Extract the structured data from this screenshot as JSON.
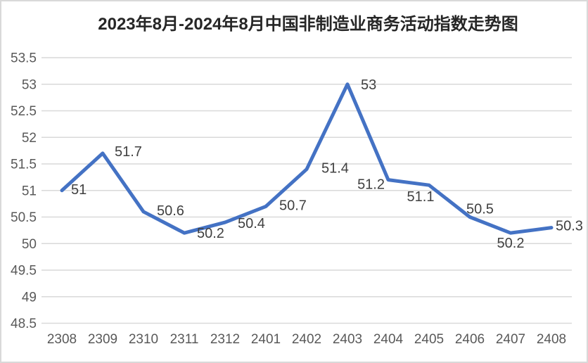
{
  "colors": {
    "line": "#4472C4",
    "gridline": "#D9D9D9",
    "axis_label": "#595959",
    "data_label": "#404040",
    "title_text": "#262626",
    "border": "#D9D9D9",
    "background": "#FFFFFF"
  },
  "chart_data": {
    "type": "line",
    "title": "2023年8月-2024年8月中国非制造业商务活动指数走势图",
    "categories": [
      "2308",
      "2309",
      "2310",
      "2311",
      "2312",
      "2401",
      "2402",
      "2403",
      "2404",
      "2405",
      "2406",
      "2407",
      "2408"
    ],
    "series": [
      {
        "name": "中国非制造业商务活动指数",
        "values": [
          51,
          51.7,
          50.6,
          50.2,
          50.4,
          50.7,
          51.4,
          53,
          51.2,
          51.1,
          50.5,
          50.2,
          50.3
        ]
      }
    ],
    "data_labels": [
      "51",
      "51.7",
      "50.6",
      "50.2",
      "50.4",
      "50.7",
      "51.4",
      "53",
      "51.2",
      "51.1",
      "50.5",
      "50.2",
      "50.3"
    ],
    "xlabel": "",
    "ylabel": "",
    "ylim": [
      48.5,
      53.5
    ],
    "ytick_step": 0.5,
    "ytick_labels": [
      "53.5",
      "53",
      "52.5",
      "52",
      "51.5",
      "51",
      "50.5",
      "50",
      "49.5",
      "49",
      "48.5"
    ],
    "grid": true,
    "legend_position": "none"
  }
}
